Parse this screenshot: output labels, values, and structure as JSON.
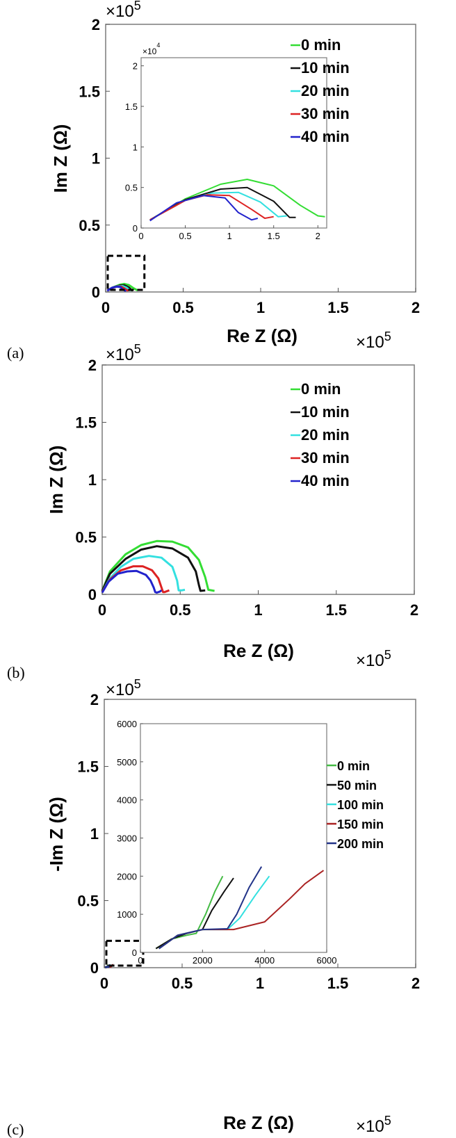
{
  "chart_data": [
    {
      "panel_label": "(a)",
      "type": "line",
      "xlabel": "Re Z (Ω)",
      "ylabel": "Im Z (Ω)",
      "x_multiplier": "×10",
      "x_multiplier_exp": "5",
      "y_multiplier": "×10",
      "y_multiplier_exp": "5",
      "xlim": [
        0,
        200000
      ],
      "ylim": [
        0,
        200000
      ],
      "x_ticks": [
        {
          "v": 0,
          "t": "0"
        },
        {
          "v": 50000,
          "t": "0.5"
        },
        {
          "v": 100000,
          "t": "1"
        },
        {
          "v": 150000,
          "t": "1.5"
        },
        {
          "v": 200000,
          "t": "2"
        }
      ],
      "y_ticks": [
        {
          "v": 0,
          "t": "0"
        },
        {
          "v": 50000,
          "t": "0.5"
        },
        {
          "v": 100000,
          "t": "1"
        },
        {
          "v": 150000,
          "t": "1.5"
        },
        {
          "v": 200000,
          "t": "2"
        }
      ],
      "zoom_box": {
        "x": [
          0,
          25000
        ],
        "y": [
          0,
          27000
        ]
      },
      "series": [
        {
          "name": "0 min",
          "color": "#33dd33",
          "x": [
            1000,
            5000,
            9000,
            12000,
            15000,
            18000,
            20000,
            20800
          ],
          "y": [
            1000,
            3600,
            5400,
            6000,
            5200,
            2800,
            1500,
            1400
          ]
        },
        {
          "name": "10 min",
          "color": "#111111",
          "x": [
            1000,
            5000,
            9000,
            12000,
            15000,
            16800,
            17500
          ],
          "y": [
            1000,
            3500,
            4800,
            5000,
            3300,
            1300,
            1300
          ]
        },
        {
          "name": "20 min",
          "color": "#33e0e0",
          "x": [
            1000,
            5000,
            8000,
            11000,
            13500,
            15500,
            16500
          ],
          "y": [
            1000,
            3400,
            4300,
            4400,
            3200,
            1400,
            1500
          ]
        },
        {
          "name": "30 min",
          "color": "#dd2222",
          "x": [
            1000,
            5000,
            7500,
            10000,
            12500,
            14000,
            15000
          ],
          "y": [
            1000,
            3400,
            4100,
            4000,
            2300,
            1200,
            1400
          ]
        },
        {
          "name": "40 min",
          "color": "#2222cc",
          "x": [
            1000,
            4000,
            7000,
            9500,
            11000,
            12500,
            13200
          ],
          "y": [
            900,
            3100,
            4000,
            3700,
            1900,
            1000,
            1200
          ]
        }
      ],
      "inset": {
        "xlim": [
          0,
          21000
        ],
        "ylim": [
          0,
          21000
        ],
        "y_multiplier": "×10",
        "y_multiplier_exp": "4",
        "x_ticks": [
          {
            "v": 0,
            "t": "0"
          },
          {
            "v": 5000,
            "t": "0.5"
          },
          {
            "v": 10000,
            "t": "1"
          },
          {
            "v": 15000,
            "t": "1.5"
          },
          {
            "v": 20000,
            "t": "2"
          }
        ],
        "y_ticks": [
          {
            "v": 0,
            "t": "0"
          },
          {
            "v": 5000,
            "t": "0.5"
          },
          {
            "v": 10000,
            "t": "1"
          },
          {
            "v": 15000,
            "t": "1.5"
          },
          {
            "v": 20000,
            "t": "2"
          }
        ]
      }
    },
    {
      "panel_label": "(b)",
      "type": "line",
      "xlabel": "Re Z (Ω)",
      "ylabel": "Im Z (Ω)",
      "x_multiplier": "×10",
      "x_multiplier_exp": "5",
      "y_multiplier": "×10",
      "y_multiplier_exp": "5",
      "xlim": [
        0,
        200000
      ],
      "ylim": [
        0,
        200000
      ],
      "x_ticks": [
        {
          "v": 0,
          "t": "0"
        },
        {
          "v": 50000,
          "t": "0.5"
        },
        {
          "v": 100000,
          "t": "1"
        },
        {
          "v": 150000,
          "t": "1.5"
        },
        {
          "v": 200000,
          "t": "2"
        }
      ],
      "y_ticks": [
        {
          "v": 0,
          "t": "0"
        },
        {
          "v": 50000,
          "t": "0.5"
        },
        {
          "v": 100000,
          "t": "1"
        },
        {
          "v": 150000,
          "t": "1.5"
        },
        {
          "v": 200000,
          "t": "2"
        }
      ],
      "series": [
        {
          "name": "0 min",
          "color": "#33dd33",
          "x": [
            0,
            5000,
            15000,
            25000,
            35000,
            45000,
            55000,
            62000,
            66000,
            68000,
            72000
          ],
          "y": [
            3000,
            20000,
            35000,
            43000,
            46500,
            46000,
            41000,
            30000,
            15000,
            4000,
            3000
          ]
        },
        {
          "name": "10 min",
          "color": "#111111",
          "x": [
            0,
            5000,
            15000,
            25000,
            35000,
            45000,
            55000,
            60000,
            62000,
            63000,
            66000
          ],
          "y": [
            3000,
            18000,
            31000,
            39000,
            42000,
            40000,
            32000,
            20000,
            8000,
            3000,
            3500
          ]
        },
        {
          "name": "20 min",
          "color": "#33e0e0",
          "x": [
            0,
            5000,
            12000,
            20000,
            30000,
            38000,
            45000,
            48000,
            49000,
            51000,
            53000
          ],
          "y": [
            2000,
            14000,
            24000,
            31000,
            33500,
            32000,
            24000,
            12000,
            3500,
            3500,
            4000
          ]
        },
        {
          "name": "30 min",
          "color": "#dd2222",
          "x": [
            0,
            5000,
            12000,
            20000,
            26000,
            32000,
            36000,
            38000,
            39000,
            40000,
            43000
          ],
          "y": [
            2000,
            13000,
            21000,
            24500,
            24500,
            21000,
            14000,
            6000,
            2000,
            2000,
            3500
          ]
        },
        {
          "name": "40 min",
          "color": "#2222cc",
          "x": [
            0,
            4000,
            10000,
            16000,
            22000,
            28000,
            31000,
            33000,
            34000,
            35000,
            37000,
            38000
          ],
          "y": [
            1500,
            11000,
            18000,
            20000,
            20500,
            17000,
            12000,
            6000,
            2000,
            1500,
            2500,
            3500
          ]
        }
      ]
    },
    {
      "panel_label": "(c)",
      "type": "line",
      "xlabel": "Re Z (Ω)",
      "ylabel": "-Im Z (Ω)",
      "x_multiplier": "×10",
      "x_multiplier_exp": "5",
      "y_multiplier": "×10",
      "y_multiplier_exp": "5",
      "xlim": [
        0,
        200000
      ],
      "ylim": [
        0,
        200000
      ],
      "x_ticks": [
        {
          "v": 0,
          "t": "0"
        },
        {
          "v": 50000,
          "t": "0.5"
        },
        {
          "v": 100000,
          "t": "1"
        },
        {
          "v": 150000,
          "t": "1.5"
        },
        {
          "v": 200000,
          "t": "2"
        }
      ],
      "y_ticks": [
        {
          "v": 0,
          "t": "0"
        },
        {
          "v": 50000,
          "t": "0.5"
        },
        {
          "v": 100000,
          "t": "1"
        },
        {
          "v": 150000,
          "t": "1.5"
        },
        {
          "v": 200000,
          "t": "2"
        }
      ],
      "zoom_box": {
        "x": [
          0,
          25000
        ],
        "y": [
          0,
          20000
        ]
      },
      "series": [
        {
          "name": "0 min",
          "color": "#44bb44",
          "x": [
            500,
            1000,
            1500,
            1800,
            2100,
            2400,
            2650
          ],
          "y": [
            100,
            350,
            450,
            500,
            1000,
            1600,
            2000
          ]
        },
        {
          "name": "50 min",
          "color": "#111111",
          "x": [
            500,
            1000,
            1500,
            2000,
            2300,
            2700,
            3000
          ],
          "y": [
            100,
            350,
            500,
            600,
            1100,
            1600,
            1950
          ]
        },
        {
          "name": "100 min",
          "color": "#33e0e0",
          "x": [
            600,
            1200,
            2000,
            2800,
            3200,
            3700,
            4150
          ],
          "y": [
            100,
            450,
            600,
            600,
            900,
            1500,
            2000
          ]
        },
        {
          "name": "150 min",
          "color": "#aa2222",
          "x": [
            600,
            1200,
            2000,
            3000,
            4000,
            4800,
            5300,
            5900
          ],
          "y": [
            100,
            450,
            600,
            600,
            800,
            1400,
            1800,
            2150
          ]
        },
        {
          "name": "200 min",
          "color": "#223388",
          "x": [
            600,
            1200,
            2000,
            2800,
            3100,
            3500,
            3900
          ],
          "y": [
            100,
            450,
            600,
            620,
            1000,
            1700,
            2250
          ]
        }
      ],
      "inset": {
        "xlim": [
          0,
          6000
        ],
        "ylim": [
          0,
          6000
        ],
        "x_ticks": [
          {
            "v": 0,
            "t": "0"
          },
          {
            "v": 2000,
            "t": "2000"
          },
          {
            "v": 4000,
            "t": "4000"
          },
          {
            "v": 6000,
            "t": "6000"
          }
        ],
        "y_ticks": [
          {
            "v": 0,
            "t": "0"
          },
          {
            "v": 1000,
            "t": "1000"
          },
          {
            "v": 2000,
            "t": "2000"
          },
          {
            "v": 3000,
            "t": "3000"
          },
          {
            "v": 4000,
            "t": "4000"
          },
          {
            "v": 5000,
            "t": "5000"
          },
          {
            "v": 6000,
            "t": "6000"
          }
        ]
      }
    }
  ]
}
